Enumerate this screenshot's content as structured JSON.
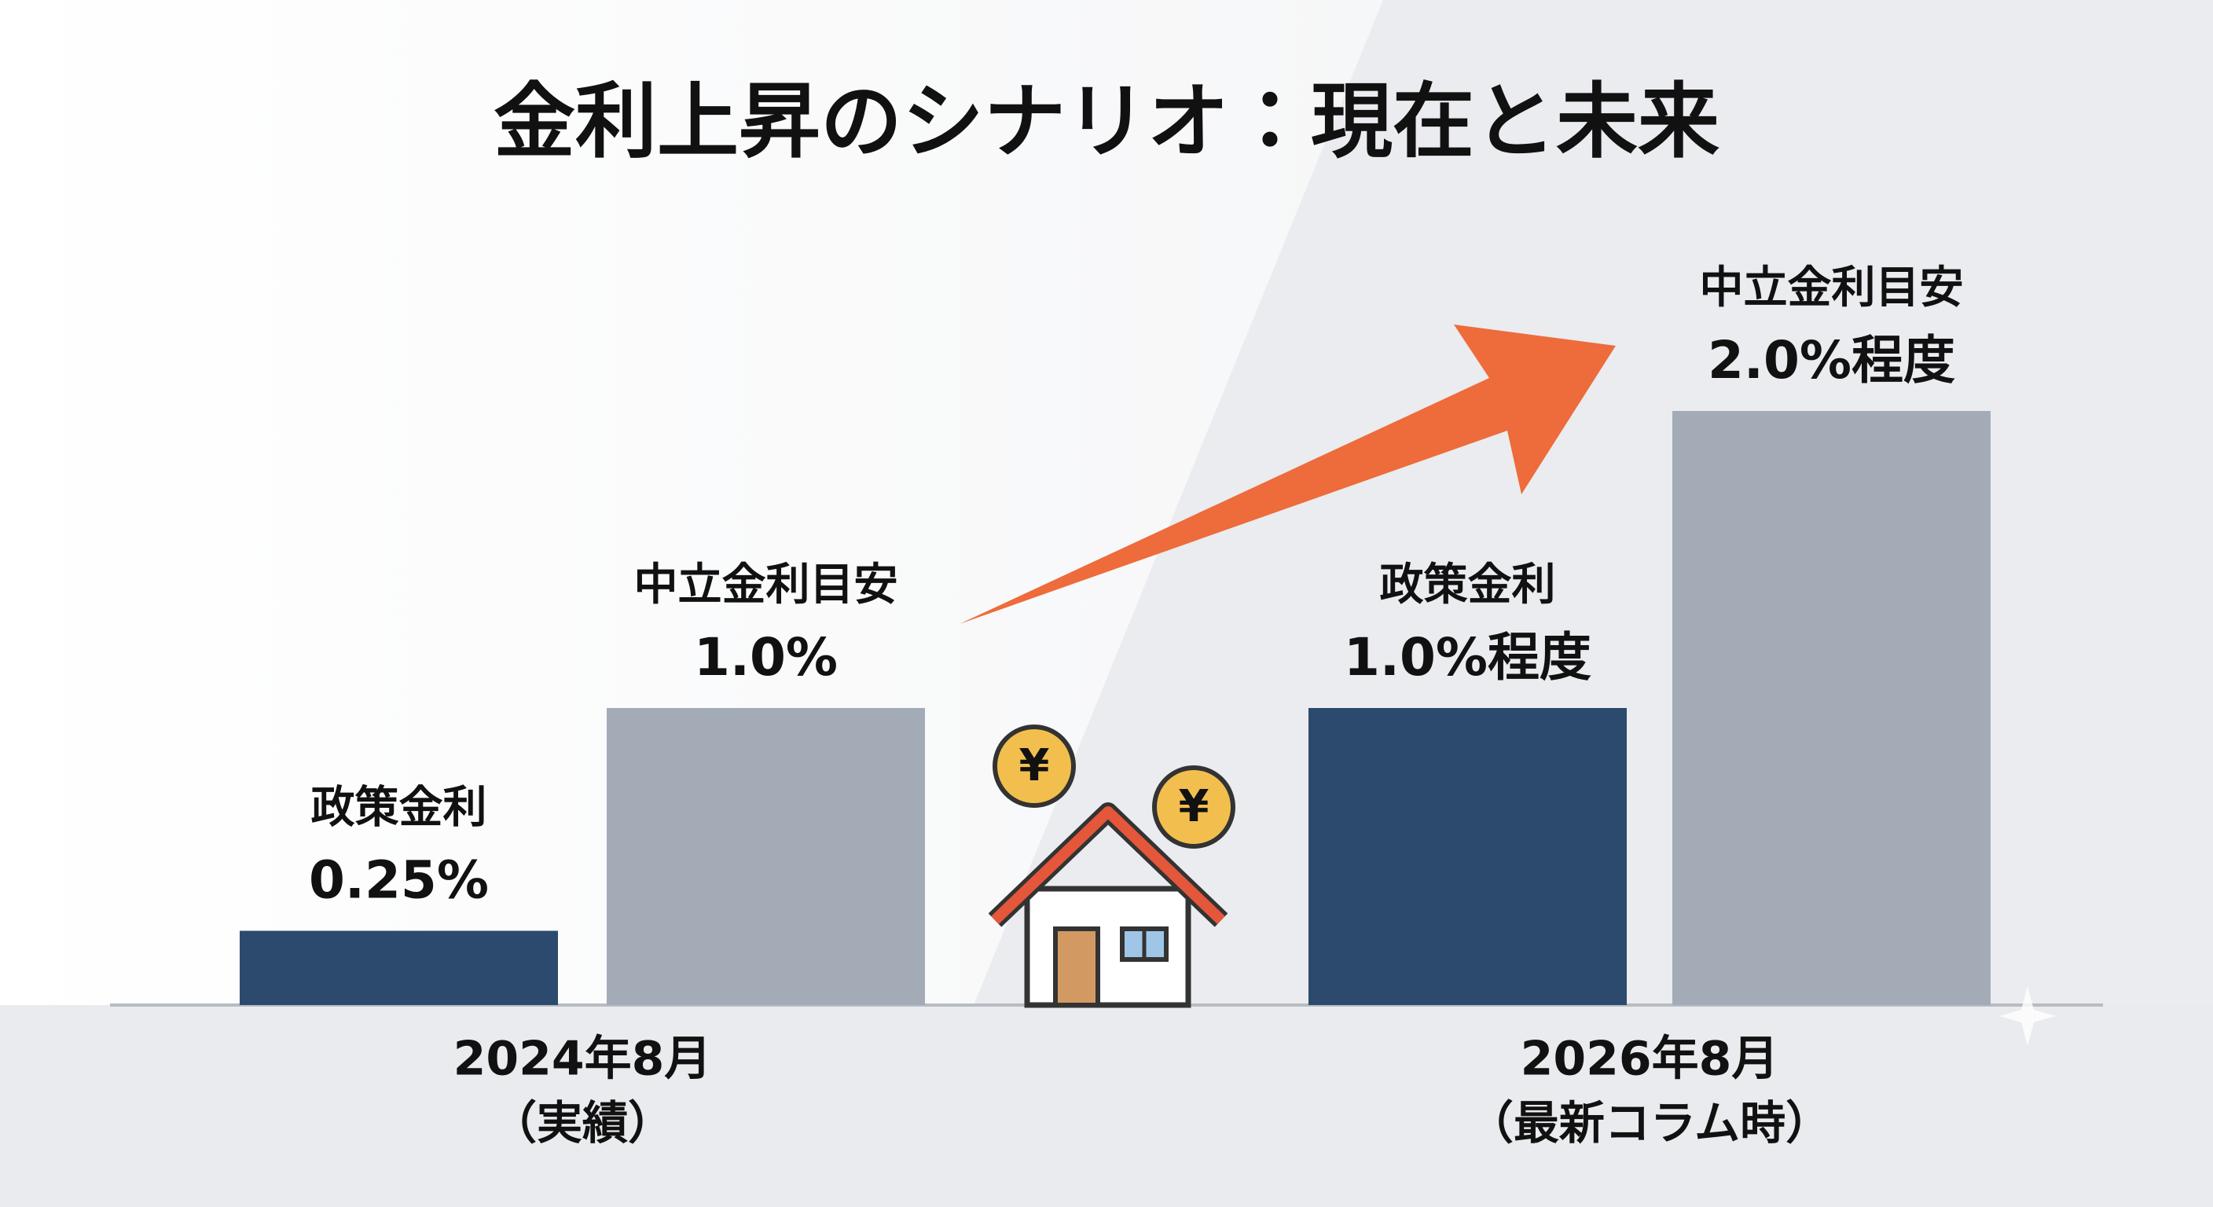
{
  "chart_data": {
    "type": "bar",
    "title": "金利上昇のシナリオ：現在と未来",
    "categories": [
      "2024年8月",
      "2026年8月"
    ],
    "category_notes": [
      "（実績）",
      "（最新コラム時）"
    ],
    "series": [
      {
        "name": "政策金利",
        "color": "#2c4a6e",
        "values": [
          0.25,
          1.0
        ],
        "value_labels": [
          "0.25%",
          "1.0%程度"
        ]
      },
      {
        "name": "中立金利目安",
        "color": "#a3acb6",
        "values": [
          1.0,
          2.0
        ],
        "value_labels": [
          "1.0%",
          "2.0%程度"
        ]
      }
    ],
    "coin_symbol": "¥"
  }
}
